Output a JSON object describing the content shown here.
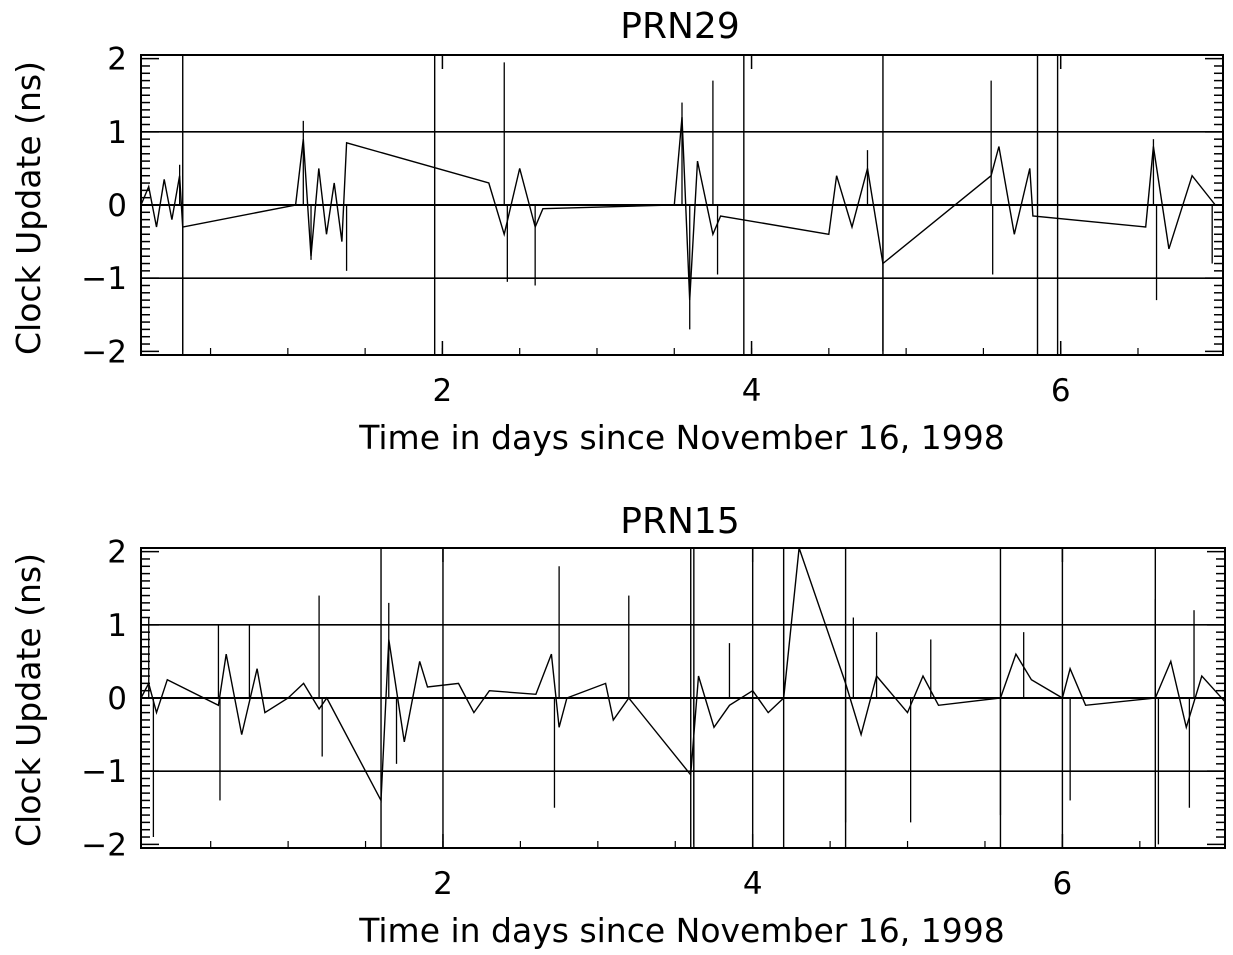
{
  "chart_data": [
    {
      "type": "line",
      "title": "PRN29",
      "xlabel": "Time in days since November 16, 1998",
      "ylabel": "Clock Update (ns)",
      "xlim": [
        0.05,
        7.05
      ],
      "ylim": [
        -2.05,
        2.05
      ],
      "x_ticks": [
        {
          "v": 2,
          "label": "2"
        },
        {
          "v": 4,
          "label": "4"
        },
        {
          "v": 6,
          "label": "6"
        }
      ],
      "y_ticks": [
        {
          "v": -2,
          "label": "−2"
        },
        {
          "v": -1,
          "label": "−1"
        },
        {
          "v": 0,
          "label": "0"
        },
        {
          "v": 1,
          "label": "1"
        },
        {
          "v": 2,
          "label": "2"
        }
      ],
      "reference_lines": [
        -1,
        0,
        1
      ],
      "vertical_lines": [
        0.32,
        1.95,
        3.95,
        4.85,
        5.85,
        5.98
      ],
      "series": [
        {
          "values": [
            {
              "x": 0.05,
              "y": 0.0
            },
            {
              "x": 0.1,
              "y": 0.25
            },
            {
              "x": 0.15,
              "y": -0.3
            },
            {
              "x": 0.2,
              "y": 0.35
            },
            {
              "x": 0.25,
              "y": -0.2
            },
            {
              "x": 0.3,
              "y": 0.4
            },
            {
              "x": 0.32,
              "y": -0.3
            },
            {
              "x": 1.05,
              "y": 0.0
            },
            {
              "x": 1.1,
              "y": 0.9
            },
            {
              "x": 1.15,
              "y": -0.7
            },
            {
              "x": 1.2,
              "y": 0.5
            },
            {
              "x": 1.25,
              "y": -0.4
            },
            {
              "x": 1.3,
              "y": 0.3
            },
            {
              "x": 1.35,
              "y": -0.5
            },
            {
              "x": 1.38,
              "y": 0.85
            },
            {
              "x": 2.3,
              "y": 0.3
            },
            {
              "x": 2.4,
              "y": -0.4
            },
            {
              "x": 2.5,
              "y": 0.5
            },
            {
              "x": 2.6,
              "y": -0.3
            },
            {
              "x": 2.65,
              "y": -0.05
            },
            {
              "x": 3.5,
              "y": 0.0
            },
            {
              "x": 3.55,
              "y": 1.2
            },
            {
              "x": 3.6,
              "y": -1.3
            },
            {
              "x": 3.65,
              "y": 0.6
            },
            {
              "x": 3.75,
              "y": -0.4
            },
            {
              "x": 3.8,
              "y": -0.15
            },
            {
              "x": 4.5,
              "y": -0.4
            },
            {
              "x": 4.55,
              "y": 0.4
            },
            {
              "x": 4.65,
              "y": -0.3
            },
            {
              "x": 4.75,
              "y": 0.5
            },
            {
              "x": 4.85,
              "y": -0.8
            },
            {
              "x": 5.55,
              "y": 0.4
            },
            {
              "x": 5.6,
              "y": 0.8
            },
            {
              "x": 5.7,
              "y": -0.4
            },
            {
              "x": 5.8,
              "y": 0.5
            },
            {
              "x": 5.82,
              "y": -0.15
            },
            {
              "x": 6.55,
              "y": -0.3
            },
            {
              "x": 6.6,
              "y": 0.8
            },
            {
              "x": 6.7,
              "y": -0.6
            },
            {
              "x": 6.85,
              "y": 0.4
            },
            {
              "x": 7.0,
              "y": 0.0
            }
          ]
        }
      ],
      "spikes": [
        {
          "x": 0.3,
          "y": 0.55
        },
        {
          "x": 0.32,
          "y": -2.0
        },
        {
          "x": 1.1,
          "y": 1.15
        },
        {
          "x": 1.15,
          "y": -0.75
        },
        {
          "x": 1.38,
          "y": -0.9
        },
        {
          "x": 2.4,
          "y": 1.95
        },
        {
          "x": 2.42,
          "y": -1.05
        },
        {
          "x": 2.6,
          "y": -1.1
        },
        {
          "x": 3.55,
          "y": 1.4
        },
        {
          "x": 3.6,
          "y": -1.7
        },
        {
          "x": 3.75,
          "y": 1.7
        },
        {
          "x": 3.78,
          "y": -0.95
        },
        {
          "x": 4.75,
          "y": 0.75
        },
        {
          "x": 4.85,
          "y": -2.0
        },
        {
          "x": 5.55,
          "y": 1.7
        },
        {
          "x": 5.56,
          "y": -0.95
        },
        {
          "x": 6.6,
          "y": 0.9
        },
        {
          "x": 6.62,
          "y": -1.3
        },
        {
          "x": 6.98,
          "y": -0.8
        }
      ]
    },
    {
      "type": "line",
      "title": "PRN15",
      "xlabel": "Time in days since November 16, 1998",
      "ylabel": "Clock Update (ns)",
      "xlim": [
        0.05,
        7.05
      ],
      "ylim": [
        -2.05,
        2.05
      ],
      "x_ticks": [
        {
          "v": 2,
          "label": "2"
        },
        {
          "v": 4,
          "label": "4"
        },
        {
          "v": 6,
          "label": "6"
        }
      ],
      "y_ticks": [
        {
          "v": -2,
          "label": "−2"
        },
        {
          "v": -1,
          "label": "−1"
        },
        {
          "v": 0,
          "label": "0"
        },
        {
          "v": 1,
          "label": "1"
        },
        {
          "v": 2,
          "label": "2"
        }
      ],
      "reference_lines": [
        -1,
        0,
        1
      ],
      "vertical_lines": [
        1.6,
        2.0,
        3.6,
        3.62,
        4.0,
        4.2,
        4.6,
        5.6,
        6.0,
        6.6
      ],
      "series": [
        {
          "values": [
            {
              "x": 0.05,
              "y": 0.0
            },
            {
              "x": 0.1,
              "y": 0.2
            },
            {
              "x": 0.15,
              "y": -0.2
            },
            {
              "x": 0.22,
              "y": 0.25
            },
            {
              "x": 0.55,
              "y": -0.1
            },
            {
              "x": 0.6,
              "y": 0.6
            },
            {
              "x": 0.7,
              "y": -0.5
            },
            {
              "x": 0.8,
              "y": 0.4
            },
            {
              "x": 0.85,
              "y": -0.2
            },
            {
              "x": 1.0,
              "y": 0.0
            },
            {
              "x": 1.1,
              "y": 0.2
            },
            {
              "x": 1.2,
              "y": -0.15
            },
            {
              "x": 1.25,
              "y": 0.0
            },
            {
              "x": 1.6,
              "y": -1.4
            },
            {
              "x": 1.65,
              "y": 0.8
            },
            {
              "x": 1.75,
              "y": -0.6
            },
            {
              "x": 1.85,
              "y": 0.5
            },
            {
              "x": 1.9,
              "y": 0.15
            },
            {
              "x": 2.1,
              "y": 0.2
            },
            {
              "x": 2.2,
              "y": -0.2
            },
            {
              "x": 2.3,
              "y": 0.1
            },
            {
              "x": 2.6,
              "y": 0.05
            },
            {
              "x": 2.7,
              "y": 0.6
            },
            {
              "x": 2.75,
              "y": -0.4
            },
            {
              "x": 2.8,
              "y": 0.0
            },
            {
              "x": 3.05,
              "y": 0.2
            },
            {
              "x": 3.1,
              "y": -0.3
            },
            {
              "x": 3.2,
              "y": 0.0
            },
            {
              "x": 3.6,
              "y": -1.05
            },
            {
              "x": 3.65,
              "y": 0.3
            },
            {
              "x": 3.75,
              "y": -0.4
            },
            {
              "x": 3.85,
              "y": -0.1
            },
            {
              "x": 4.0,
              "y": 0.1
            },
            {
              "x": 4.1,
              "y": -0.2
            },
            {
              "x": 4.2,
              "y": 0.0
            },
            {
              "x": 4.3,
              "y": 2.05
            },
            {
              "x": 4.6,
              "y": 0.2
            },
            {
              "x": 4.7,
              "y": -0.5
            },
            {
              "x": 4.8,
              "y": 0.3
            },
            {
              "x": 5.0,
              "y": -0.2
            },
            {
              "x": 5.1,
              "y": 0.3
            },
            {
              "x": 5.2,
              "y": -0.1
            },
            {
              "x": 5.6,
              "y": 0.0
            },
            {
              "x": 5.7,
              "y": 0.6
            },
            {
              "x": 5.8,
              "y": 0.25
            },
            {
              "x": 6.0,
              "y": 0.0
            },
            {
              "x": 6.05,
              "y": 0.4
            },
            {
              "x": 6.15,
              "y": -0.1
            },
            {
              "x": 6.6,
              "y": 0.0
            },
            {
              "x": 6.7,
              "y": 0.5
            },
            {
              "x": 6.8,
              "y": -0.4
            },
            {
              "x": 6.9,
              "y": 0.3
            },
            {
              "x": 7.05,
              "y": -0.05
            }
          ]
        }
      ],
      "spikes": [
        {
          "x": 0.1,
          "y": 1.1
        },
        {
          "x": 0.13,
          "y": -1.9
        },
        {
          "x": 0.55,
          "y": 1.0
        },
        {
          "x": 0.56,
          "y": -1.4
        },
        {
          "x": 0.75,
          "y": 1.0
        },
        {
          "x": 1.2,
          "y": 1.4
        },
        {
          "x": 1.22,
          "y": -0.8
        },
        {
          "x": 1.65,
          "y": 1.3
        },
        {
          "x": 1.7,
          "y": -0.9
        },
        {
          "x": 2.75,
          "y": 1.8
        },
        {
          "x": 2.72,
          "y": -1.5
        },
        {
          "x": 3.2,
          "y": 1.4
        },
        {
          "x": 3.62,
          "y": -2.0
        },
        {
          "x": 3.85,
          "y": 0.75
        },
        {
          "x": 4.2,
          "y": 1.2
        },
        {
          "x": 4.65,
          "y": 1.1
        },
        {
          "x": 4.6,
          "y": -1.7
        },
        {
          "x": 4.8,
          "y": 0.9
        },
        {
          "x": 5.02,
          "y": -1.7
        },
        {
          "x": 5.15,
          "y": 0.8
        },
        {
          "x": 5.6,
          "y": -1.6
        },
        {
          "x": 5.75,
          "y": 0.9
        },
        {
          "x": 6.05,
          "y": -1.4
        },
        {
          "x": 6.6,
          "y": 1.35
        },
        {
          "x": 6.62,
          "y": -2.0
        },
        {
          "x": 6.85,
          "y": 1.2
        },
        {
          "x": 6.82,
          "y": -1.5
        }
      ]
    }
  ]
}
